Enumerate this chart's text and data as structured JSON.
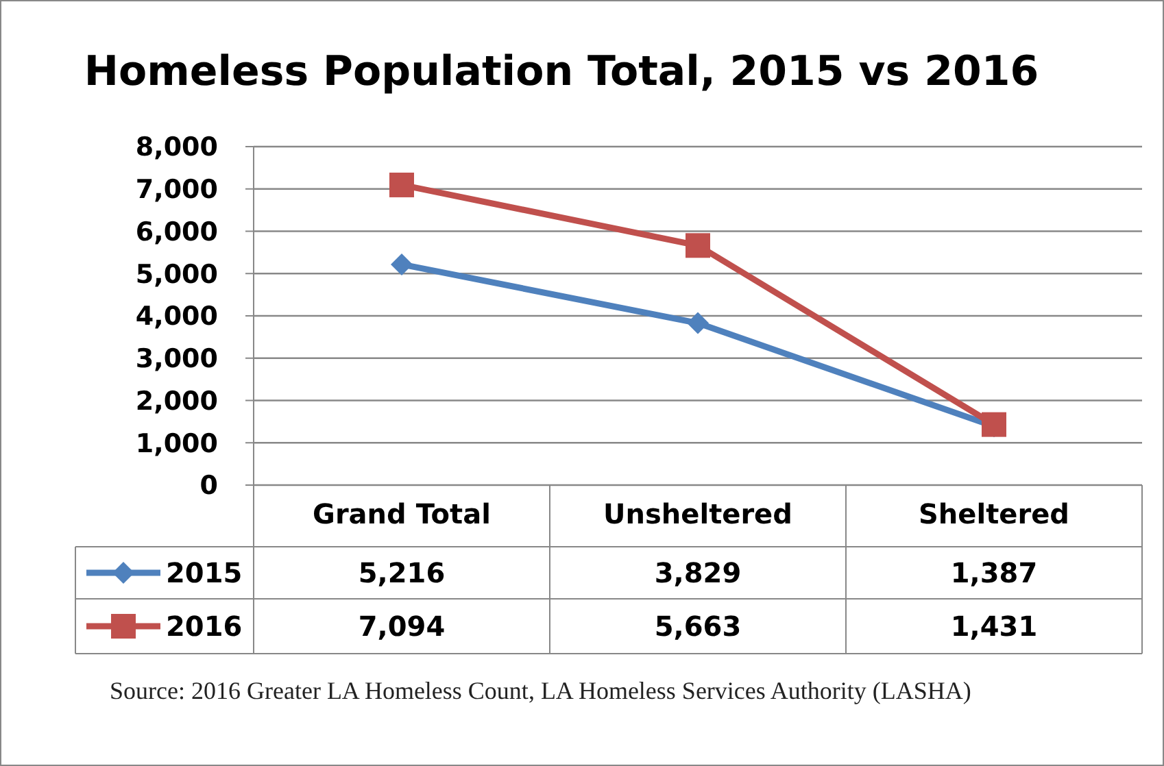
{
  "chart_data": {
    "type": "line",
    "title": "Homeless Population Total, 2015 vs 2016",
    "categories": [
      "Grand Total",
      "Unsheltered",
      "Sheltered"
    ],
    "series": [
      {
        "name": "2015",
        "color": "#4f81bd",
        "values": [
          5216,
          3829,
          1387
        ],
        "value_labels": [
          "5,216",
          "3,829",
          "1,387"
        ],
        "marker": "diamond"
      },
      {
        "name": "2016",
        "color": "#c0504d",
        "values": [
          7094,
          5663,
          1431
        ],
        "value_labels": [
          "7,094",
          "5,663",
          "1,431"
        ],
        "marker": "square"
      }
    ],
    "ylim": [
      0,
      8000
    ],
    "yticks": [
      {
        "value": 0,
        "label": "0"
      },
      {
        "value": 1000,
        "label": "1,000"
      },
      {
        "value": 2000,
        "label": "2,000"
      },
      {
        "value": 3000,
        "label": "3,000"
      },
      {
        "value": 4000,
        "label": "4,000"
      },
      {
        "value": 5000,
        "label": "5,000"
      },
      {
        "value": 6000,
        "label": "6,000"
      },
      {
        "value": 7000,
        "label": "7,000"
      },
      {
        "value": 8000,
        "label": "8,000"
      }
    ],
    "grid": "y",
    "legend": "bottom",
    "annotations": [
      "Source: 2016 Greater LA Homeless Count, LA Homeless Services Authority (LASHA)"
    ]
  }
}
